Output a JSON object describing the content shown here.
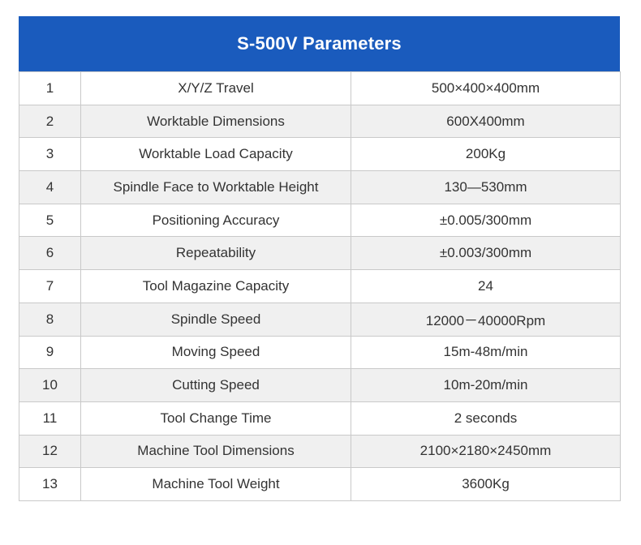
{
  "title": "S-500V Parameters",
  "colors": {
    "header_bg": "#1a5bbd",
    "header_text": "#ffffff",
    "row_alt": "#f0f0f0",
    "border": "#c9c9c9"
  },
  "rows": [
    {
      "no": "1",
      "name": "X/Y/Z Travel",
      "value": "500×400×400mm"
    },
    {
      "no": "2",
      "name": "Worktable Dimensions",
      "value": "600X400mm"
    },
    {
      "no": "3",
      "name": "Worktable Load Capacity",
      "value": "200Kg"
    },
    {
      "no": "4",
      "name": "Spindle Face to Worktable Height",
      "value": "130—530mm"
    },
    {
      "no": "5",
      "name": "Positioning Accuracy",
      "value": "±0.005/300mm"
    },
    {
      "no": "6",
      "name": "Repeatability",
      "value": "±0.003/300mm"
    },
    {
      "no": "7",
      "name": "Tool Magazine Capacity",
      "value": "24"
    },
    {
      "no": "8",
      "name": "Spindle Speed",
      "value": "12000－40000Rpm"
    },
    {
      "no": "9",
      "name": "Moving Speed",
      "value": "15m-48m/min"
    },
    {
      "no": "10",
      "name": "Cutting Speed",
      "value": "10m-20m/min"
    },
    {
      "no": "11",
      "name": "Tool Change Time",
      "value": "2 seconds"
    },
    {
      "no": "12",
      "name": "Machine Tool Dimensions",
      "value": "2100×2180×2450mm"
    },
    {
      "no": "13",
      "name": "Machine Tool Weight",
      "value": "3600Kg"
    }
  ]
}
